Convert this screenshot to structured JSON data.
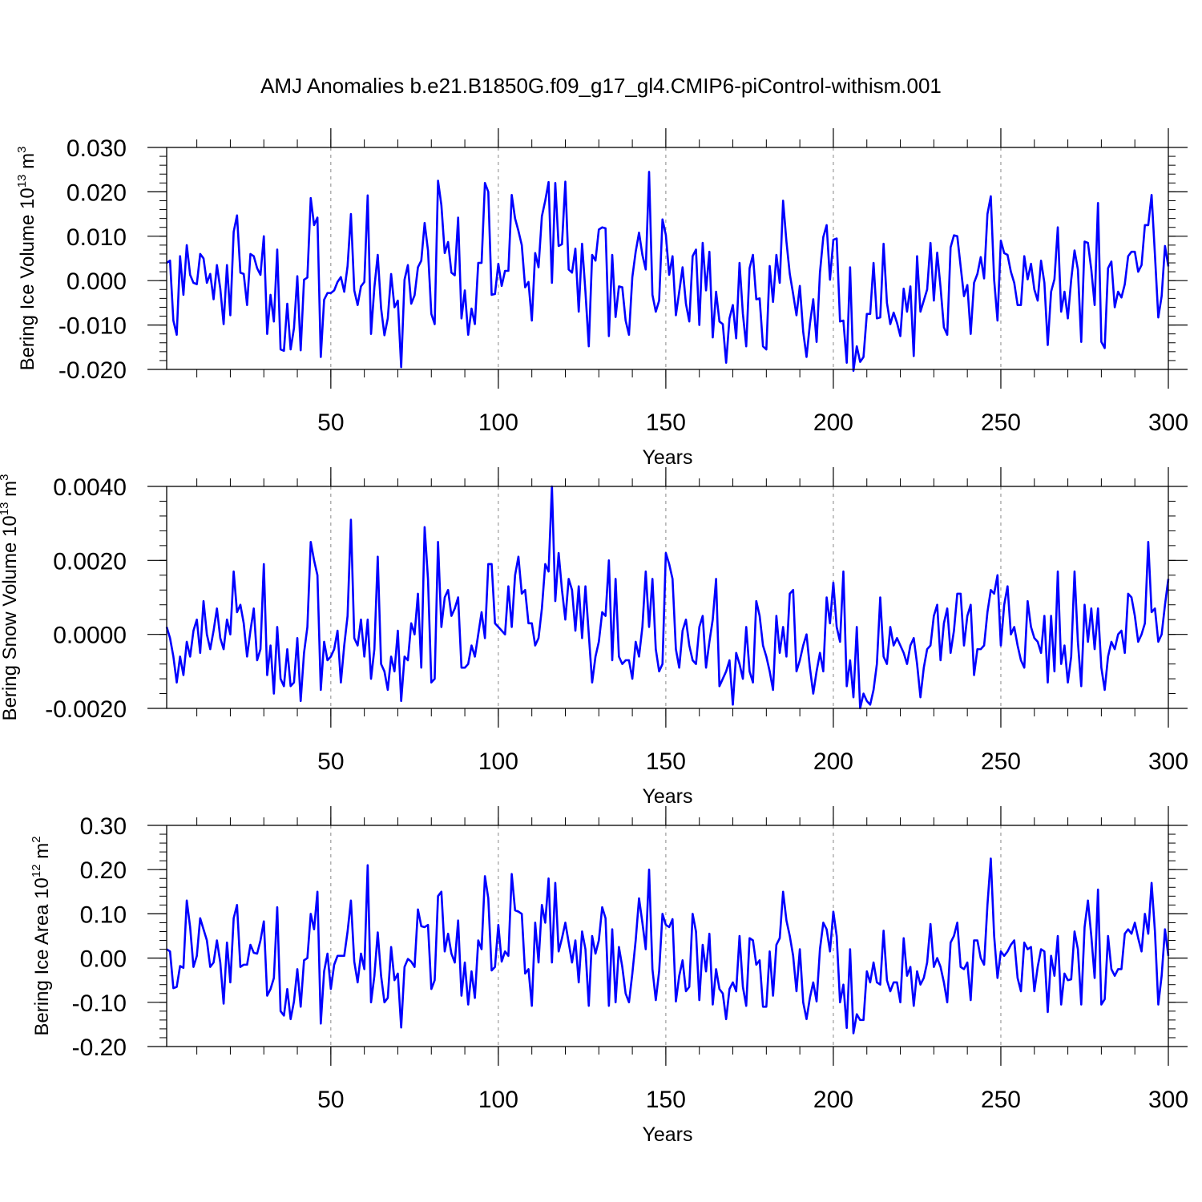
{
  "title": "AMJ Anomalies b.e21.B1850G.f09_g17_gl4.CMIP6-piControl-withism.001",
  "chart_data": [
    {
      "type": "line",
      "ylabel": "Bering Ice Volume 10",
      "ylabel_exp": "13",
      "ylabel_unit": "m",
      "ylabel_unit_exp": "3",
      "xlabel": "Years",
      "xlim": [
        1,
        300
      ],
      "ylim": [
        -0.02,
        0.03
      ],
      "x_ticks": [
        50,
        100,
        150,
        200,
        250,
        300
      ],
      "x_tick_labels": [
        "50",
        "100",
        "150",
        "200",
        "250",
        "300"
      ],
      "y_ticks": [
        -0.02,
        -0.01,
        0.0,
        0.01,
        0.02,
        0.03
      ],
      "y_tick_labels": [
        "-0.020",
        "-0.010",
        "0.000",
        "0.010",
        "0.020",
        "0.030"
      ],
      "color": "#0000ff",
      "grid_x": [
        50,
        100,
        150,
        200,
        250
      ],
      "values": [
        0.004,
        0.0045,
        -0.009,
        -0.0122,
        0.0055,
        -0.0032,
        0.008,
        0.0013,
        -0.0005,
        -0.0008,
        0.006,
        0.005,
        -0.0005,
        0.0015,
        -0.0042,
        0.0035,
        -0.0018,
        -0.0098,
        0.0035,
        -0.0078,
        0.011,
        0.0147,
        0.0018,
        0.0015,
        -0.0055,
        0.006,
        0.0055,
        0.0028,
        0.0013,
        0.01,
        -0.012,
        -0.0032,
        -0.0092,
        0.007,
        -0.0155,
        -0.0158,
        -0.0052,
        -0.0155,
        -0.0107,
        0.001,
        -0.0157,
        0.0002,
        0.0007,
        0.0186,
        0.0125,
        0.0142,
        -0.0172,
        -0.0043,
        -0.0028,
        -0.0028,
        -0.0022,
        -0.0003,
        0.0008,
        -0.0025,
        0.0033,
        0.015,
        -0.0022,
        -0.0055,
        -0.0013,
        -0.0003,
        0.0192,
        -0.012,
        -0.0015,
        0.0058,
        -0.0062,
        -0.0123,
        -0.0085,
        0.0015,
        -0.006,
        -0.0045,
        -0.0195,
        0.0002,
        0.0035,
        -0.0052,
        -0.0033,
        0.003,
        0.0045,
        0.013,
        0.0068,
        -0.0075,
        -0.0098,
        0.0225,
        0.017,
        0.0062,
        0.0087,
        0.0018,
        0.0012,
        0.0142,
        -0.0085,
        -0.0022,
        -0.0122,
        -0.0063,
        -0.0098,
        0.004,
        0.004,
        0.022,
        0.02,
        -0.0032,
        -0.003,
        0.0038,
        -0.0012,
        0.0022,
        0.0022,
        0.0193,
        0.014,
        0.0112,
        0.008,
        -0.0015,
        -0.0003,
        -0.009,
        0.0062,
        0.003,
        0.0145,
        0.018,
        0.0222,
        -0.0005,
        0.022,
        0.0078,
        0.0082,
        0.0223,
        0.0025,
        0.0018,
        0.0072,
        -0.007,
        0.0083,
        -0.0025,
        -0.0148,
        0.0058,
        0.0045,
        0.0115,
        0.012,
        0.0118,
        -0.0125,
        0.0058,
        -0.0082,
        -0.0013,
        -0.0015,
        -0.009,
        -0.0122,
        0.0008,
        0.0065,
        0.0108,
        0.0058,
        0.0025,
        0.0245,
        -0.0032,
        -0.007,
        -0.0045,
        0.0138,
        0.0103,
        0.0013,
        0.0055,
        -0.0078,
        -0.0025,
        0.003,
        -0.0052,
        -0.0092,
        0.0055,
        0.007,
        -0.01,
        0.0085,
        -0.0022,
        0.0065,
        -0.0128,
        -0.0025,
        -0.0092,
        -0.0098,
        -0.0185,
        -0.0085,
        -0.0055,
        -0.013,
        0.004,
        -0.0075,
        -0.0148,
        0.0028,
        0.0058,
        -0.0042,
        -0.004,
        -0.0148,
        -0.0155,
        0.0033,
        -0.0048,
        0.0058,
        -0.0005,
        0.018,
        0.0088,
        0.0015,
        -0.003,
        -0.0078,
        -0.0012,
        -0.0115,
        -0.0172,
        -0.0098,
        -0.0042,
        -0.0138,
        0.0018,
        0.0098,
        0.0125,
        0.0002,
        0.0092,
        0.0095,
        -0.0092,
        -0.009,
        -0.0185,
        0.003,
        -0.0203,
        -0.0148,
        -0.0183,
        -0.0172,
        -0.0075,
        -0.0075,
        0.004,
        -0.0085,
        -0.0083,
        0.0083,
        -0.005,
        -0.0098,
        -0.0072,
        -0.0095,
        -0.0125,
        -0.0018,
        -0.007,
        -0.0013,
        -0.017,
        0.0055,
        -0.007,
        -0.0045,
        -0.002,
        0.0085,
        -0.0045,
        0.0063,
        -0.0015,
        -0.0105,
        -0.0122,
        0.0075,
        0.0102,
        0.01,
        0.0032,
        -0.0035,
        -0.001,
        -0.012,
        -0.0005,
        0.0015,
        0.0053,
        0.0005,
        0.015,
        0.019,
        0.0002,
        -0.009,
        0.009,
        0.0062,
        0.0058,
        0.002,
        -0.0005,
        -0.0055,
        -0.0055,
        0.0055,
        0.0003,
        0.0038,
        -0.002,
        -0.0045,
        0.0045,
        -0.0005,
        -0.0145,
        -0.0025,
        0.0003,
        0.012,
        -0.007,
        -0.0025,
        -0.0085,
        0.0002,
        0.0068,
        0.0025,
        -0.0138,
        0.0088,
        0.0085,
        0.0025,
        -0.0055,
        0.0175,
        -0.0138,
        -0.0152,
        0.0028,
        0.0043,
        -0.006,
        -0.0025,
        -0.0038,
        -0.0008,
        0.0055,
        0.0065,
        0.0065,
        0.002,
        0.0035,
        0.0125,
        0.0125,
        0.0193,
        0.0058,
        -0.0083,
        -0.0035,
        0.0078,
        0.0032
      ]
    },
    {
      "type": "line",
      "ylabel": "Bering Snow Volume 10",
      "ylabel_exp": "13",
      "ylabel_unit": "m",
      "ylabel_unit_exp": "3",
      "xlabel": "Years",
      "xlim": [
        1,
        300
      ],
      "ylim": [
        -0.002,
        0.004
      ],
      "x_ticks": [
        50,
        100,
        150,
        200,
        250,
        300
      ],
      "x_tick_labels": [
        "50",
        "100",
        "150",
        "200",
        "250",
        "300"
      ],
      "y_ticks": [
        -0.002,
        0.0,
        0.002,
        0.004
      ],
      "y_tick_labels": [
        "-0.0020",
        "0.0000",
        "0.0020",
        "0.0040"
      ],
      "color": "#0000ff",
      "grid_x": [
        50,
        100,
        150,
        200,
        250
      ],
      "values": [
        0.0002,
        -0.0001,
        -0.0006,
        -0.0013,
        -0.0006,
        -0.0011,
        -0.0002,
        -0.0006,
        0.0001,
        0.0004,
        -0.0005,
        0.0009,
        0.0,
        -0.0004,
        0.0001,
        0.0007,
        -0.0001,
        -0.0004,
        0.0004,
        0.0,
        0.0017,
        0.0006,
        0.0008,
        0.0003,
        -0.0006,
        0.0001,
        0.0007,
        -0.0007,
        -0.0004,
        0.0019,
        -0.0011,
        -0.0003,
        -0.0016,
        0.0002,
        -0.0012,
        -0.0014,
        -0.0004,
        -0.0014,
        -0.0013,
        -0.0001,
        -0.0018,
        -0.0005,
        0.0002,
        0.0025,
        0.002,
        0.0016,
        -0.0015,
        -0.0002,
        -0.0007,
        -0.0006,
        -0.0004,
        0.0001,
        -0.0013,
        -0.0003,
        0.0005,
        0.0031,
        -0.0001,
        -0.0003,
        0.0004,
        -0.0006,
        0.0004,
        -0.0012,
        -0.0004,
        0.0021,
        -0.0008,
        -0.001,
        -0.0015,
        -0.0006,
        -0.001,
        0.0001,
        -0.0018,
        -0.0006,
        -0.0007,
        0.0003,
        0.0,
        0.0011,
        -0.0009,
        0.0029,
        0.0015,
        -0.0013,
        -0.0012,
        0.0025,
        0.0002,
        0.001,
        0.0012,
        0.0005,
        0.0007,
        0.001,
        -0.0009,
        -0.0009,
        -0.0008,
        -0.0003,
        -0.0006,
        0.0,
        0.0006,
        -0.0001,
        0.0019,
        0.0019,
        0.0003,
        0.0002,
        0.0001,
        0.0,
        0.0013,
        0.0002,
        0.0016,
        0.0021,
        0.0011,
        0.0012,
        0.0003,
        0.0003,
        -0.0003,
        -0.0001,
        0.0007,
        0.0019,
        0.0017,
        0.004,
        0.0009,
        0.0022,
        0.0012,
        0.0004,
        0.0015,
        0.0012,
        0.0001,
        0.0013,
        -0.0001,
        0.0013,
        0.0,
        -0.0013,
        -0.0006,
        -0.0002,
        0.0006,
        0.0005,
        0.002,
        -0.0007,
        0.0015,
        -0.0006,
        -0.0008,
        -0.0007,
        -0.0007,
        -0.0012,
        -0.0002,
        -0.0006,
        0.0002,
        0.0017,
        0.0002,
        0.0015,
        -0.0004,
        -0.001,
        -0.0008,
        0.0022,
        0.0019,
        0.0015,
        -0.0004,
        -0.0009,
        0.0001,
        0.0004,
        -0.0003,
        -0.0007,
        -0.0008,
        0.0002,
        0.0005,
        -0.0009,
        -0.0002,
        0.0004,
        0.0015,
        -0.0014,
        -0.0012,
        -0.001,
        -0.0007,
        -0.0019,
        -0.0005,
        -0.0008,
        -0.0012,
        0.0002,
        -0.001,
        -0.0013,
        0.0009,
        0.0005,
        -0.0003,
        -0.0006,
        -0.001,
        -0.0015,
        0.0005,
        -0.0005,
        0.0002,
        -0.0006,
        0.0011,
        0.0012,
        -0.001,
        -0.0007,
        -0.0003,
        0.0,
        -0.0009,
        -0.0016,
        -0.001,
        -0.0005,
        -0.001,
        0.001,
        0.0003,
        0.0014,
        0.0002,
        -0.0002,
        0.0017,
        -0.0014,
        -0.0007,
        -0.0017,
        0.0002,
        -0.002,
        -0.0016,
        -0.0018,
        -0.0019,
        -0.0015,
        -0.0008,
        0.001,
        -0.0006,
        -0.0008,
        0.0002,
        -0.0003,
        -0.0001,
        -0.0003,
        -0.0005,
        -0.0008,
        -0.0003,
        -0.0001,
        -0.0008,
        -0.0017,
        -0.0009,
        -0.0004,
        -0.0003,
        0.0005,
        0.0008,
        -0.0007,
        0.0003,
        0.0007,
        -0.0005,
        0.0001,
        0.0011,
        0.0011,
        -0.0003,
        0.0005,
        0.0008,
        -0.0011,
        -0.0004,
        -0.0004,
        -0.0003,
        0.0006,
        0.0012,
        0.0011,
        0.0016,
        -0.0003,
        0.0008,
        0.0013,
        0.0,
        0.0002,
        -0.0003,
        -0.0007,
        -0.0009,
        0.0009,
        0.0002,
        -0.0001,
        -0.0002,
        -0.0005,
        0.0005,
        -0.0013,
        0.0005,
        -0.001,
        0.0017,
        -0.0008,
        -0.0003,
        -0.0013,
        -0.0006,
        0.0017,
        -0.0002,
        -0.0014,
        0.0008,
        -0.0002,
        0.0007,
        -0.0004,
        0.0007,
        -0.0009,
        -0.0015,
        -0.0006,
        -0.0002,
        -0.0004,
        0.0,
        0.0001,
        -0.0005,
        0.0011,
        0.001,
        0.0005,
        -0.0002,
        0.0,
        0.0003,
        0.0025,
        0.0006,
        0.0007,
        -0.0002,
        0.0,
        0.0008,
        0.0015
      ]
    },
    {
      "type": "line",
      "ylabel": "Bering Ice Area 10",
      "ylabel_exp": "12",
      "ylabel_unit": "m",
      "ylabel_unit_exp": "2",
      "xlabel": "Years",
      "xlim": [
        1,
        300
      ],
      "ylim": [
        -0.2,
        0.3
      ],
      "x_ticks": [
        50,
        100,
        150,
        200,
        250,
        300
      ],
      "x_tick_labels": [
        "50",
        "100",
        "150",
        "200",
        "250",
        "300"
      ],
      "y_ticks": [
        -0.2,
        -0.1,
        0.0,
        0.1,
        0.2,
        0.3
      ],
      "y_tick_labels": [
        "-0.20",
        "-0.10",
        "0.00",
        "0.10",
        "0.20",
        "0.30"
      ],
      "color": "#0000ff",
      "grid_x": [
        50,
        100,
        150,
        200,
        250
      ],
      "values": [
        0.02,
        0.015,
        -0.068,
        -0.065,
        -0.018,
        -0.022,
        0.13,
        0.07,
        -0.02,
        0.005,
        0.09,
        0.065,
        0.04,
        -0.02,
        -0.01,
        0.04,
        -0.01,
        -0.103,
        0.035,
        -0.055,
        0.09,
        0.12,
        -0.02,
        -0.015,
        -0.015,
        0.03,
        0.012,
        0.01,
        0.04,
        0.083,
        -0.085,
        -0.07,
        -0.045,
        0.115,
        -0.12,
        -0.13,
        -0.07,
        -0.138,
        -0.098,
        -0.025,
        -0.11,
        -0.005,
        0.0,
        0.1,
        0.065,
        0.15,
        -0.148,
        -0.03,
        0.01,
        -0.07,
        -0.015,
        0.005,
        0.005,
        0.005,
        0.06,
        0.13,
        -0.008,
        -0.055,
        0.01,
        -0.025,
        0.21,
        -0.1,
        -0.04,
        0.058,
        -0.04,
        -0.1,
        -0.09,
        0.025,
        -0.05,
        -0.035,
        -0.157,
        -0.02,
        -0.002,
        -0.008,
        -0.02,
        0.11,
        0.072,
        0.07,
        0.075,
        -0.07,
        -0.05,
        0.14,
        0.15,
        0.015,
        0.055,
        0.01,
        -0.01,
        0.085,
        -0.085,
        -0.01,
        -0.105,
        -0.03,
        -0.09,
        0.04,
        0.02,
        0.185,
        0.135,
        -0.028,
        -0.02,
        0.075,
        -0.008,
        0.015,
        0.005,
        0.19,
        0.108,
        0.105,
        0.1,
        -0.035,
        -0.025,
        -0.108,
        0.08,
        -0.01,
        0.12,
        0.08,
        0.18,
        -0.01,
        0.17,
        0.015,
        0.045,
        0.08,
        0.035,
        -0.01,
        0.04,
        -0.055,
        0.06,
        0.02,
        -0.108,
        0.05,
        0.01,
        0.04,
        0.115,
        0.09,
        -0.108,
        0.065,
        -0.1,
        0.025,
        -0.02,
        -0.08,
        -0.1,
        -0.035,
        0.04,
        0.135,
        0.08,
        0.02,
        0.2,
        -0.025,
        -0.095,
        -0.03,
        0.1,
        0.075,
        0.07,
        0.088,
        -0.098,
        -0.04,
        -0.005,
        -0.075,
        -0.065,
        0.1,
        0.06,
        -0.095,
        0.03,
        -0.03,
        0.055,
        -0.105,
        -0.025,
        -0.07,
        -0.08,
        -0.138,
        -0.07,
        -0.055,
        -0.075,
        0.05,
        -0.065,
        -0.108,
        0.045,
        0.04,
        -0.015,
        -0.005,
        -0.11,
        -0.11,
        0.015,
        -0.085,
        0.03,
        0.045,
        0.15,
        0.085,
        0.05,
        0.005,
        -0.075,
        0.02,
        -0.1,
        -0.138,
        -0.09,
        -0.055,
        -0.098,
        0.02,
        0.08,
        0.065,
        0.015,
        0.105,
        0.05,
        -0.1,
        -0.06,
        -0.158,
        0.02,
        -0.17,
        -0.127,
        -0.14,
        -0.14,
        -0.03,
        -0.055,
        -0.01,
        -0.055,
        -0.06,
        0.062,
        -0.05,
        -0.075,
        -0.055,
        -0.055,
        -0.1,
        0.045,
        -0.04,
        -0.02,
        -0.108,
        -0.03,
        -0.06,
        -0.045,
        -0.01,
        0.077,
        -0.02,
        0.0,
        -0.02,
        -0.055,
        -0.1,
        0.035,
        0.05,
        0.08,
        -0.02,
        -0.025,
        -0.01,
        -0.095,
        0.04,
        0.04,
        0.0,
        -0.015,
        0.12,
        0.225,
        0.05,
        -0.045,
        0.015,
        0.005,
        0.015,
        0.03,
        0.04,
        -0.045,
        -0.075,
        0.035,
        0.02,
        0.025,
        -0.075,
        -0.02,
        0.02,
        0.015,
        -0.122,
        0.005,
        -0.04,
        0.05,
        -0.105,
        -0.035,
        -0.05,
        -0.048,
        0.06,
        0.02,
        -0.105,
        0.07,
        0.13,
        0.05,
        -0.045,
        0.155,
        -0.105,
        -0.093,
        0.05,
        -0.025,
        -0.04,
        -0.025,
        -0.025,
        0.055,
        0.065,
        0.055,
        0.08,
        0.045,
        0.015,
        0.1,
        0.055,
        0.17,
        0.06,
        -0.105,
        -0.04,
        0.065,
        0.005
      ]
    }
  ]
}
